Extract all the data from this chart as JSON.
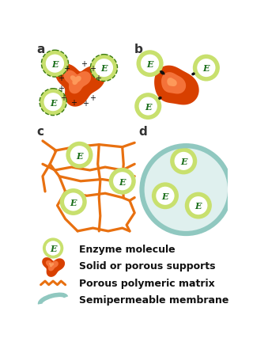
{
  "bg_color": "#ffffff",
  "enzyme_fill": "#c8e06e",
  "enzyme_white": "#ffffff",
  "enzyme_text_color": "#1a6e1a",
  "support_dark": "#c83000",
  "support_light": "#f07030",
  "polymer_color": "#e87010",
  "membrane_color": "#90c8c0",
  "label_color": "#333333",
  "plus_color": "#111111",
  "bond_color": "#111111",
  "legend_items": [
    "Enzyme molecule",
    "Solid or porous supports",
    "Porous polymeric matrix",
    "Semipermeable membrane"
  ]
}
